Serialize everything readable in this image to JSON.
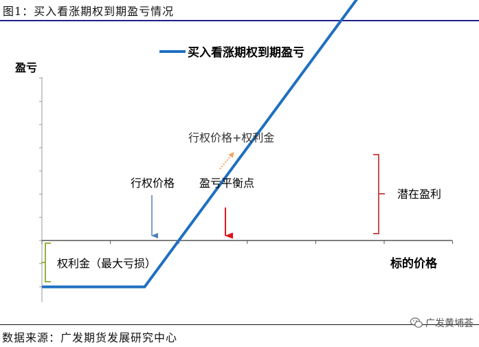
{
  "figure": {
    "caption": "图1：买入看涨期权到期盈亏情况",
    "source": "数据来源：广发期货发展研究中心",
    "watermark": "广发黄埔荟",
    "watermark_icon": "wechat-icon"
  },
  "chart_data": {
    "type": "line",
    "title": "",
    "xlabel": "标的价格",
    "ylabel": "盈亏",
    "legend": {
      "position": "top-center",
      "entries": [
        "买入看涨期权到期盈亏"
      ]
    },
    "grid": false,
    "series": [
      {
        "name": "买入看涨期权到期盈亏",
        "color": "#1f6fc1",
        "x": [
          0,
          3,
          12
        ],
        "y": [
          -1,
          -1,
          8
        ]
      }
    ],
    "xlim": [
      0,
      12
    ],
    "ylim": [
      -1.5,
      3.5
    ],
    "annotations": {
      "strike": {
        "label": "行权价格",
        "x": 3,
        "color": "#4a7ebb"
      },
      "breakeven": {
        "label": "盈亏平衡点",
        "x": 4,
        "color": "#e0141e"
      },
      "breakeven_formula": {
        "label": "行权价格+权利金",
        "color": "#f5a25d"
      },
      "premium": {
        "label": "权利金（最大亏损）",
        "color": "#8db43e"
      },
      "potential_profit": {
        "label": "潜在盈利",
        "color": "#c0504d"
      }
    }
  }
}
